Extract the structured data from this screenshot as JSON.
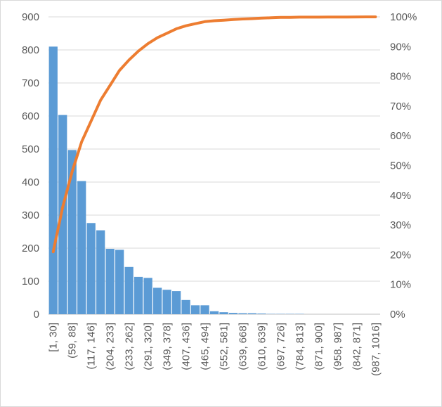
{
  "chart_data": {
    "type": "bar",
    "title": "",
    "xlabel": "",
    "ylabel": "",
    "categories": [
      "[1, 30]",
      "(30, 59]",
      "(59, 88]",
      "(88, 117]",
      "(117, 146]",
      "(146, 175]",
      "(204, 233]",
      "(175, 204]",
      "(233, 262]",
      "(262, 291]",
      "(291, 320]",
      "(320, 349]",
      "(349, 378]",
      "(378, 407]",
      "(407, 436]",
      "(436, 465]",
      "(465, 494]",
      "(494, 523]",
      "(552, 581]",
      "(523, 552]",
      "(639, 668]",
      "(581, 610]",
      "(610, 639]",
      "(668, 697]",
      "(697, 726]",
      "(755, 784]",
      "(784, 813]",
      "(726, 755]",
      "(871, 900]",
      "(813, 842]",
      "(958, 987]",
      "(929, 958]",
      "(842, 871]",
      "(900, 929]",
      "(987, 1016]"
    ],
    "category_labels_shown_every": 2,
    "series": [
      {
        "type": "bar",
        "color": "#5b9bd5",
        "axis": "left",
        "values": [
          810,
          603,
          497,
          403,
          276,
          254,
          198,
          195,
          143,
          113,
          110,
          80,
          74,
          70,
          43,
          27,
          27,
          9,
          6,
          4,
          3,
          3,
          2,
          1,
          1,
          1,
          1,
          0,
          0,
          0,
          0,
          0,
          0,
          0,
          0
        ]
      },
      {
        "type": "line",
        "color": "#ed7d31",
        "axis": "right",
        "values": [
          0.21,
          0.36,
          0.48,
          0.58,
          0.65,
          0.72,
          0.77,
          0.82,
          0.855,
          0.885,
          0.91,
          0.93,
          0.945,
          0.96,
          0.97,
          0.977,
          0.984,
          0.987,
          0.989,
          0.991,
          0.993,
          0.994,
          0.996,
          0.997,
          0.998,
          0.998,
          0.999,
          0.999,
          0.999,
          0.9995,
          0.9995,
          0.9995,
          0.9997,
          0.9999,
          1.0
        ]
      }
    ],
    "y_left": {
      "min": 0,
      "max": 900,
      "step": 100
    },
    "y_right": {
      "min": 0,
      "max": 1,
      "step": 0.1,
      "format": "percent"
    },
    "grid": true,
    "legend": "none"
  }
}
